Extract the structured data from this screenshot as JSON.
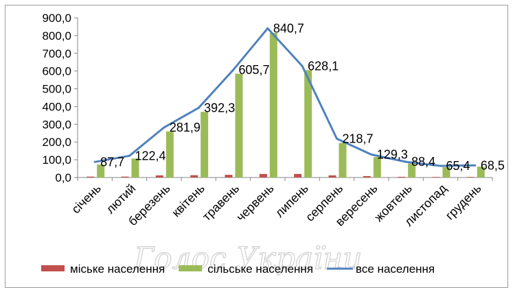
{
  "chart_data": {
    "type": "bar",
    "categories": [
      "січень",
      "лютий",
      "березень",
      "квітень",
      "травень",
      "червень",
      "липень",
      "серпень",
      "вересень",
      "жовтень",
      "листопад",
      "грудень"
    ],
    "series": [
      {
        "name": "міське населення",
        "type": "bar",
        "color": "#c0504d",
        "values": [
          5,
          5,
          12,
          13,
          15,
          20,
          20,
          12,
          8,
          4,
          3,
          3
        ]
      },
      {
        "name": "сільське населення",
        "type": "bar",
        "color": "#9bbb59",
        "values": [
          73,
          107,
          260,
          370,
          585,
          815,
          605,
          195,
          115,
          80,
          58,
          61
        ]
      },
      {
        "name": "все населення",
        "type": "line",
        "color": "#4f81bd",
        "values": [
          87.7,
          122.4,
          281.9,
          392.3,
          605.7,
          840.7,
          628.1,
          218.7,
          129.3,
          88.4,
          65.4,
          68.5
        ]
      }
    ],
    "data_labels": [
      "87,7",
      "122,4",
      "281,9",
      "392,3",
      "605,7",
      "840,7",
      "628,1",
      "218,7",
      "129,3",
      "88,4",
      "65,4",
      "68,5"
    ],
    "yticks": [
      "0,0",
      "100,0",
      "200,0",
      "300,0",
      "400,0",
      "500,0",
      "600,0",
      "700,0",
      "800,0",
      "900,0"
    ],
    "ylim": [
      0,
      900
    ],
    "legend_position": "bottom",
    "grid": false,
    "title": "",
    "xlabel": "",
    "ylabel": ""
  },
  "watermark": "Голос України"
}
